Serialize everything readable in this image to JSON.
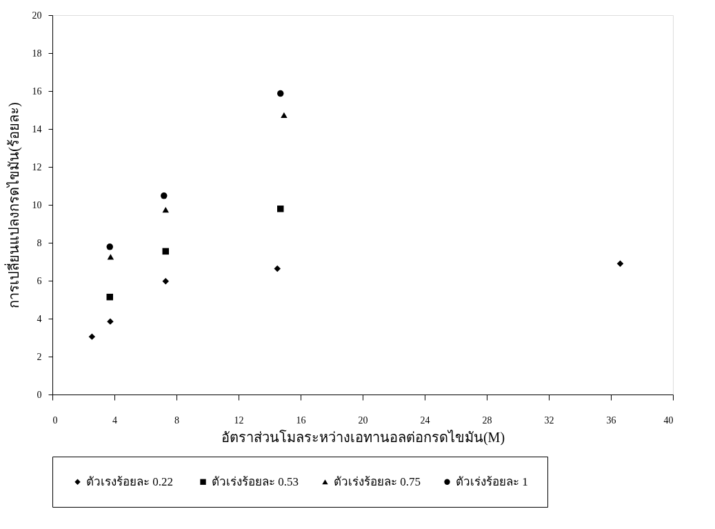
{
  "chart_data": {
    "type": "scatter",
    "xlabel": "อัตราส่วนโมลระหว่างเอทานอลต่อกรดไขมัน(M)",
    "ylabel": "การเปลี่ยนแปลงกรดไขมัน(ร้อยละ)",
    "xlim": [
      0,
      40
    ],
    "xticks": [
      0,
      4,
      8,
      12,
      16,
      20,
      24,
      28,
      32,
      36,
      40
    ],
    "ylim": [
      0,
      20
    ],
    "yticks": [
      0,
      2,
      4,
      6,
      8,
      10,
      12,
      14,
      16,
      18,
      20
    ],
    "grid": false,
    "legend": "bottom",
    "series": [
      {
        "name": "ตัวเรงร้อยละ  0.22",
        "color": "#000000",
        "marker": "diamond",
        "x": [
          2.55,
          3.73,
          7.3,
          14.5,
          36.6
        ],
        "values": [
          3.05,
          3.85,
          5.97,
          6.64,
          6.9
        ]
      },
      {
        "name": "ตัวเร่งร้อยละ 0.53",
        "color": "#000000",
        "marker": "square",
        "x": [
          3.7,
          7.3,
          14.7
        ],
        "values": [
          5.14,
          7.55,
          9.79
        ]
      },
      {
        "name": "ตัวเร่งร้อยละ 0.75",
        "color": "#000000",
        "marker": "triangle",
        "x": [
          3.75,
          7.3,
          14.93
        ],
        "values": [
          7.26,
          9.74,
          14.73
        ]
      },
      {
        "name": "ตัวเร่งร้อยละ 1",
        "color": "#000000",
        "marker": "circle",
        "x": [
          3.7,
          7.19,
          14.7
        ],
        "values": [
          7.79,
          10.48,
          15.87
        ]
      }
    ]
  }
}
